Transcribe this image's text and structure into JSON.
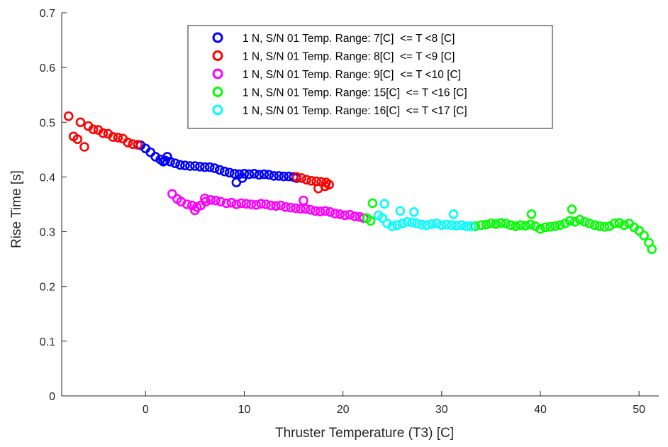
{
  "chart_data": {
    "type": "scatter",
    "title": "",
    "xlabel": "Thruster Temperature (T3) [C]",
    "ylabel": "Rise Time [s]",
    "xlim": [
      -8.5,
      52
    ],
    "ylim": [
      0,
      0.7
    ],
    "xticks": [
      0,
      10,
      20,
      30,
      40,
      50
    ],
    "yticks": [
      0,
      0.1,
      0.2,
      0.3,
      0.4,
      0.5,
      0.6,
      0.7
    ],
    "xtick_labels": [
      "0",
      "10",
      "20",
      "30",
      "40",
      "50"
    ],
    "ytick_labels": [
      "0",
      "0.1",
      "0.2",
      "0.3",
      "0.4",
      "0.5",
      "0.6",
      "0.7"
    ],
    "grid": false,
    "legend_position": "top-center",
    "marker": "open-circle",
    "series": [
      {
        "name": "1 N, S/N 01 Temp. Range: 7[C]  <= T <8 [C]",
        "color": "#0000ff",
        "x": [
          -0.5,
          0.0,
          0.5,
          1.0,
          1.5,
          2.0,
          2.5,
          3.0,
          3.5,
          4.0,
          4.5,
          5.0,
          5.5,
          6.0,
          6.5,
          7.0,
          7.5,
          8.0,
          8.5,
          9.0,
          9.5,
          10.0,
          10.5,
          11.0,
          11.5,
          12.0,
          12.5,
          13.0,
          13.5,
          14.0,
          14.5,
          15.0,
          15.3,
          1.8,
          2.2,
          9.2,
          9.8
        ],
        "y": [
          0.458,
          0.452,
          0.445,
          0.437,
          0.432,
          0.43,
          0.428,
          0.425,
          0.422,
          0.421,
          0.42,
          0.42,
          0.419,
          0.418,
          0.418,
          0.416,
          0.413,
          0.41,
          0.408,
          0.406,
          0.405,
          0.406,
          0.405,
          0.406,
          0.404,
          0.405,
          0.404,
          0.402,
          0.402,
          0.401,
          0.401,
          0.4,
          0.398,
          0.428,
          0.437,
          0.39,
          0.398
        ]
      },
      {
        "name": "1 N, S/N 01 Temp. Range: 8[C]  <= T <9 [C]",
        "color": "#ff0000",
        "x": [
          -7.8,
          -7.3,
          -6.9,
          -6.6,
          -6.2,
          -5.8,
          -5.3,
          -4.8,
          -4.3,
          -3.8,
          -3.3,
          -2.8,
          -2.3,
          -1.8,
          -1.3,
          -0.8,
          15.3,
          15.8,
          16.3,
          16.8,
          17.3,
          17.8,
          18.3,
          18.6,
          17.5,
          18.2
        ],
        "y": [
          0.511,
          0.474,
          0.469,
          0.5,
          0.455,
          0.493,
          0.487,
          0.486,
          0.48,
          0.479,
          0.473,
          0.472,
          0.47,
          0.463,
          0.46,
          0.459,
          0.4,
          0.398,
          0.395,
          0.393,
          0.392,
          0.391,
          0.39,
          0.386,
          0.379,
          0.383
        ]
      },
      {
        "name": "1 N, S/N 01 Temp. Range: 9[C]  <= T <10 [C]",
        "color": "#ff00ff",
        "x": [
          2.7,
          3.2,
          3.6,
          4.2,
          4.7,
          5.2,
          5.6,
          6.1,
          6.6,
          7.1,
          7.6,
          8.2,
          8.7,
          9.2,
          9.7,
          10.2,
          10.7,
          11.2,
          11.7,
          12.2,
          12.7,
          13.2,
          13.7,
          14.2,
          14.7,
          15.2,
          15.7,
          16.2,
          16.7,
          17.2,
          17.7,
          18.2,
          18.7,
          19.2,
          19.7,
          20.2,
          20.7,
          21.2,
          21.7,
          22.1,
          5.0,
          6.0,
          16.0
        ],
        "y": [
          0.369,
          0.36,
          0.355,
          0.35,
          0.348,
          0.345,
          0.348,
          0.355,
          0.358,
          0.357,
          0.355,
          0.352,
          0.353,
          0.35,
          0.352,
          0.351,
          0.35,
          0.349,
          0.351,
          0.35,
          0.348,
          0.347,
          0.348,
          0.345,
          0.344,
          0.343,
          0.342,
          0.342,
          0.34,
          0.338,
          0.337,
          0.338,
          0.336,
          0.333,
          0.332,
          0.33,
          0.331,
          0.328,
          0.327,
          0.325,
          0.339,
          0.361,
          0.357
        ]
      },
      {
        "name": "1 N, S/N 01 Temp. Range: 15[C]  <= T <16 [C]",
        "color": "#00ff00",
        "x": [
          22.4,
          22.8,
          23.0,
          33.4,
          34.0,
          34.5,
          35.0,
          35.5,
          36.0,
          36.5,
          37.0,
          37.5,
          38.0,
          38.5,
          39.0,
          39.5,
          40.0,
          40.5,
          41.0,
          41.5,
          42.0,
          42.5,
          43.0,
          43.5,
          44.0,
          44.5,
          45.0,
          45.5,
          46.0,
          46.5,
          47.0,
          47.5,
          48.0,
          48.5,
          49.0,
          49.5,
          50.0,
          50.5,
          51.0,
          51.3,
          39.1,
          43.2
        ],
        "y": [
          0.325,
          0.32,
          0.352,
          0.31,
          0.312,
          0.313,
          0.315,
          0.314,
          0.316,
          0.315,
          0.312,
          0.31,
          0.312,
          0.311,
          0.313,
          0.31,
          0.305,
          0.308,
          0.309,
          0.31,
          0.312,
          0.315,
          0.32,
          0.318,
          0.322,
          0.318,
          0.315,
          0.312,
          0.31,
          0.309,
          0.31,
          0.315,
          0.316,
          0.312,
          0.315,
          0.308,
          0.302,
          0.293,
          0.28,
          0.268,
          0.332,
          0.341
        ]
      },
      {
        "name": "1 N, S/N 01 Temp. Range: 16[C]  <= T <17 [C]",
        "color": "#00ffff",
        "x": [
          23.6,
          24.0,
          24.5,
          25.0,
          25.5,
          26.0,
          26.5,
          27.0,
          27.5,
          28.0,
          28.5,
          29.0,
          29.5,
          30.0,
          30.5,
          31.0,
          31.5,
          32.0,
          32.5,
          33.0,
          24.2,
          25.8,
          27.2,
          31.2
        ],
        "y": [
          0.33,
          0.325,
          0.315,
          0.31,
          0.312,
          0.315,
          0.318,
          0.317,
          0.315,
          0.313,
          0.312,
          0.314,
          0.315,
          0.312,
          0.313,
          0.312,
          0.311,
          0.312,
          0.31,
          0.31,
          0.351,
          0.338,
          0.336,
          0.332
        ]
      }
    ]
  }
}
